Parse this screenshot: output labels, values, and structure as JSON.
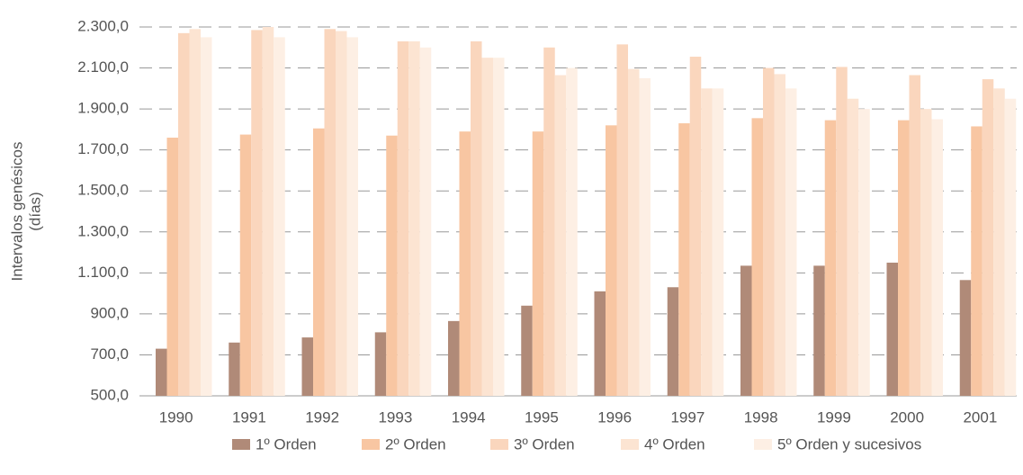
{
  "chart_data": {
    "type": "bar",
    "ylabel": [
      "Intervalos genésicos",
      "(días)"
    ],
    "categories": [
      "1990",
      "1991",
      "1992",
      "1993",
      "1994",
      "1995",
      "1996",
      "1997",
      "1998",
      "1999",
      "2000",
      "2001"
    ],
    "series": [
      {
        "name": "1º Orden",
        "color": "#b08a78",
        "values": [
          730,
          760,
          785,
          810,
          865,
          940,
          1010,
          1030,
          1135,
          1135,
          1150,
          1065
        ]
      },
      {
        "name": "2º Orden",
        "color": "#f8c6a2",
        "values": [
          1760,
          1775,
          1805,
          1770,
          1790,
          1790,
          1820,
          1830,
          1855,
          1845,
          1845,
          1815
        ]
      },
      {
        "name": "3º Orden",
        "color": "#fad6bd",
        "values": [
          2270,
          2285,
          2290,
          2230,
          2230,
          2200,
          2215,
          2155,
          2100,
          2105,
          2065,
          2045
        ]
      },
      {
        "name": "4º Orden",
        "color": "#fce4d2",
        "values": [
          2290,
          2300,
          2280,
          2230,
          2150,
          2065,
          2095,
          2000,
          2070,
          1950,
          1900,
          2000
        ]
      },
      {
        "name": "5º Orden y sucesivos",
        "color": "#fdefe4",
        "values": [
          2250,
          2250,
          2250,
          2200,
          2150,
          2100,
          2050,
          2000,
          2000,
          1900,
          1850,
          1950
        ]
      }
    ],
    "ylim": [
      500,
      2300
    ],
    "yticks": [
      {
        "value": 500,
        "label": "500,0"
      },
      {
        "value": 700,
        "label": "700,0"
      },
      {
        "value": 900,
        "label": "900,0"
      },
      {
        "value": 1100,
        "label": "1.100,0"
      },
      {
        "value": 1300,
        "label": "1.300,0"
      },
      {
        "value": 1500,
        "label": "1.500,0"
      },
      {
        "value": 1700,
        "label": "1.700,0"
      },
      {
        "value": 1900,
        "label": "1.900,0"
      },
      {
        "value": 2100,
        "label": "2.100,0"
      },
      {
        "value": 2300,
        "label": "2.300,0"
      }
    ],
    "grid": true,
    "legend": "bottom"
  }
}
